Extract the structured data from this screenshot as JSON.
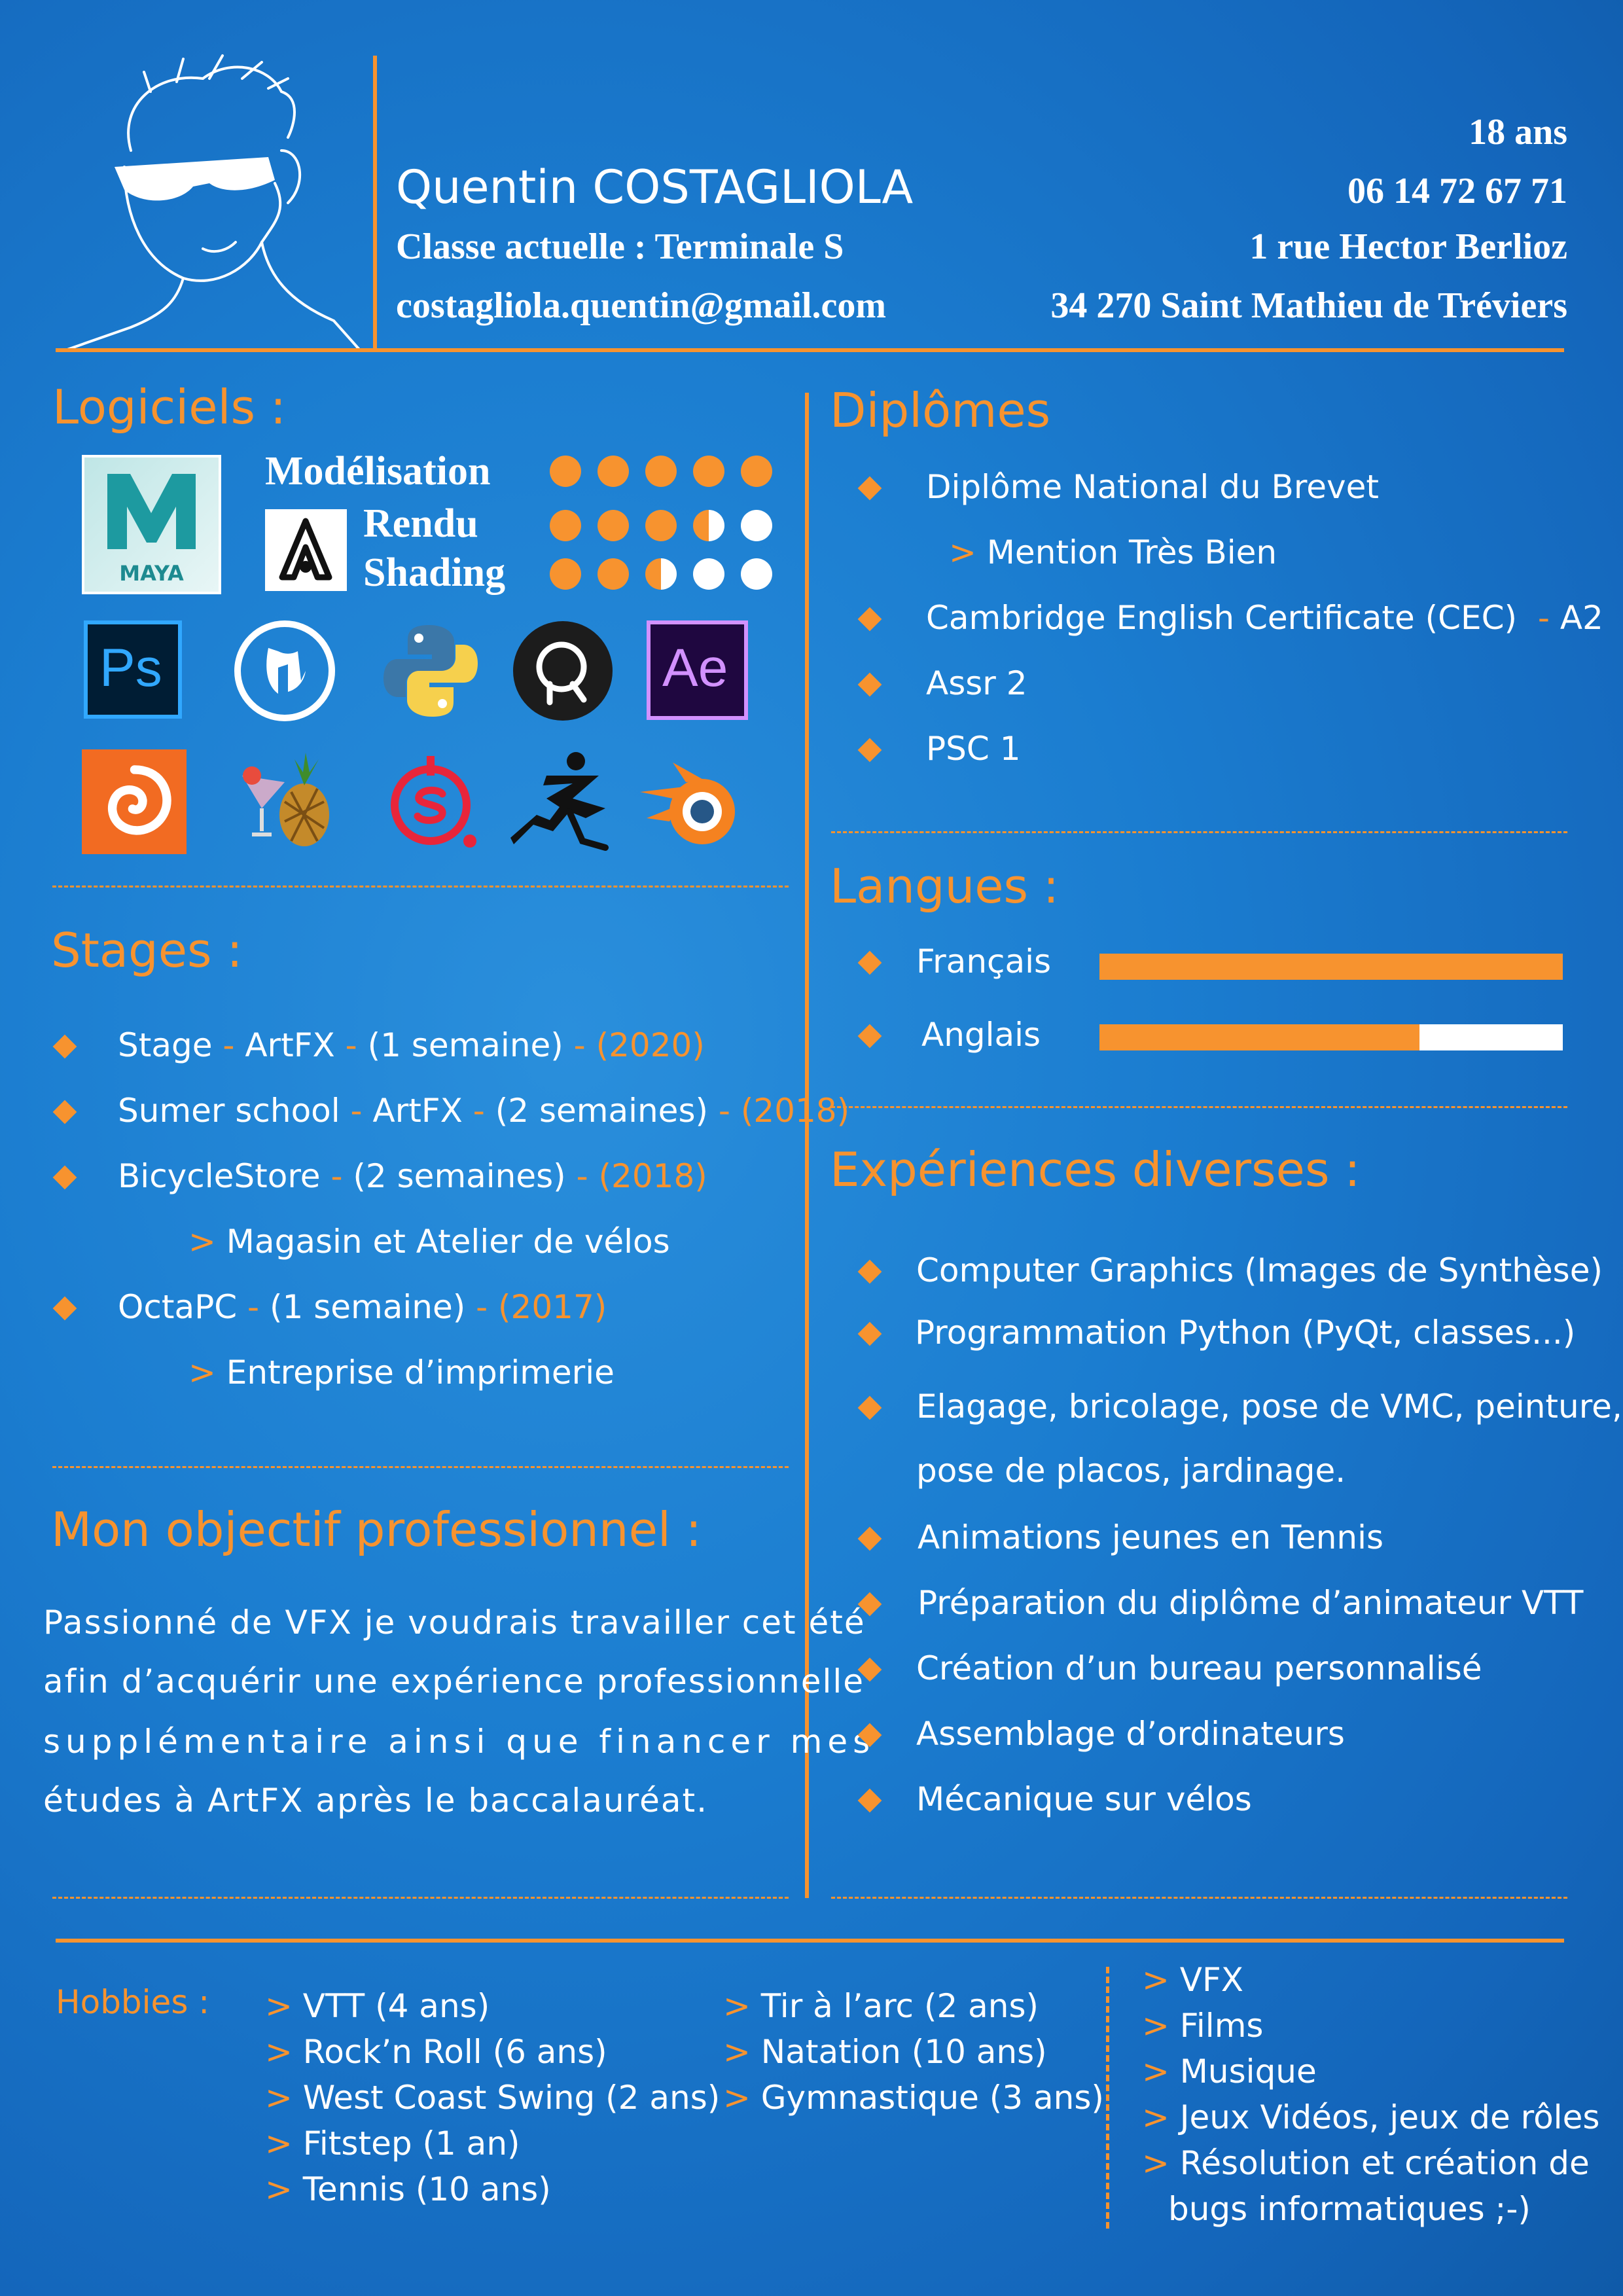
{
  "header": {
    "name": "Quentin COSTAGLIOLA",
    "classe": "Classe actuelle : Terminale S",
    "email": "costagliola.quentin@gmail.com",
    "age": "18 ans",
    "phone": "06 14 72 67 71",
    "address1": "1 rue Hector Berlioz",
    "address2": "34 270 Saint Mathieu de Tréviers"
  },
  "logiciels": {
    "title": "Logiciels :",
    "skills": [
      {
        "label": "Modélisation",
        "level": 5
      },
      {
        "label": "Rendu",
        "level": 3.5
      },
      {
        "label": "Shading",
        "level": 2.5
      }
    ],
    "icons": [
      "maya-icon",
      "arnold-icon",
      "photoshop-icon",
      "unreal-icon",
      "python-icon",
      "renderman-icon",
      "after-effects-icon",
      "houdini-icon",
      "pineapple-icon",
      "substance-painter-icon",
      "zbrush-icon",
      "blender-icon"
    ],
    "maya_caption": "MAYA",
    "ps_caption": "Ps",
    "ae_caption": "Ae"
  },
  "stages": {
    "title": "Stages :",
    "items": [
      {
        "a": "Stage",
        "b": " - ",
        "c": "ArtFX",
        "d": " - ",
        "e": "(1 semaine)",
        "f": " - (2020)"
      },
      {
        "a": "Sumer school",
        "b": " - ",
        "c": "ArtFX",
        "d": " - ",
        "e": "(2 semaines)",
        "f": " - (2018)"
      },
      {
        "a": "BicycleStore",
        "b": " - ",
        "c": "(2 semaines)",
        "d": "",
        "e": "",
        "f": " - (2018)"
      },
      {
        "a": "OctaPC",
        "b": " - ",
        "c": "(1 semaine)",
        "d": "",
        "e": "",
        "f": " - (2017)"
      }
    ],
    "sub1": "> ",
    "sub1_text": "Magasin et Atelier de vélos",
    "sub2_text": "Entreprise d’imprimerie"
  },
  "objectif": {
    "title": "Mon objectif professionnel :",
    "lines": [
      "Passionné de VFX je voudrais travailler cet été",
      "afin d’acquérir une expérience professionnelle",
      "supplémentaire ainsi que financer mes",
      "études à ArtFX après le baccalauréat."
    ]
  },
  "diplomes": {
    "title": "Diplômes",
    "items": [
      "Diplôme National du Brevet",
      "Cambridge English Certificate (CEC)",
      "Assr 2",
      "PSC 1"
    ],
    "mention": "Mention Très Bien",
    "cec_level_sep": " - ",
    "cec_level": "A2"
  },
  "langues": {
    "title": "Langues :",
    "items": [
      {
        "label": "Français",
        "level": 1.0
      },
      {
        "label": "Anglais",
        "level": 0.69
      }
    ]
  },
  "experiences": {
    "title": "Expériences diverses :",
    "items": [
      "Computer Graphics (Images de Synthèse)",
      "Programmation Python (PyQt, classes...)",
      "Elagage, bricolage, pose de VMC, peinture,",
      "Animations jeunes en Tennis",
      "Préparation du diplôme d’animateur VTT",
      "Création d’un bureau personnalisé",
      "Assemblage d’ordinateurs",
      "Mécanique sur vélos"
    ],
    "continuation": "pose de placos, jardinage."
  },
  "hobbies": {
    "title": "Hobbies :",
    "col1": [
      "VTT (4 ans)",
      "Rock’n Roll (6 ans)",
      "West Coast Swing (2 ans)",
      "Fitstep (1 an)",
      "Tennis (10 ans)"
    ],
    "col2": [
      "Tir à l’arc (2 ans)",
      "Natation (10 ans)",
      "Gymnastique (3 ans)"
    ],
    "col3": [
      "VFX",
      "Films",
      "Musique",
      "Jeux Vidéos, jeux de rôles",
      "Résolution et création de"
    ],
    "col3_cont": "bugs informatiques ;-)",
    "prefix": "> "
  },
  "colors": {
    "accent": "#f7932f",
    "background": "#1b7dd0",
    "text": "#ffffff"
  }
}
